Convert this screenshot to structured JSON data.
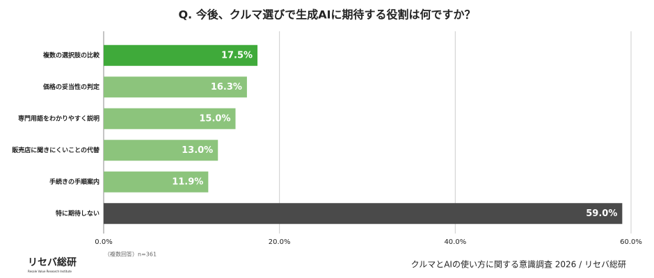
{
  "chart_data": {
    "type": "barh",
    "title": "Q. 今後、クルマ選びで生成AIに期待する役割は何ですか？",
    "categories": [
      "複数の選択肢の比較",
      "価格の妥当性の判定",
      "専門用語をわかりやすく説明",
      "販売店に聞きにくいことの代替",
      "手続きの手順案内",
      "特に期待しない"
    ],
    "values": [
      17.5,
      16.3,
      15.0,
      13.0,
      11.9,
      59.0
    ],
    "value_labels": [
      "17.5%",
      "16.3%",
      "15.0%",
      "13.0%",
      "11.9%",
      "59.0%"
    ],
    "colors": [
      "#3faa3a",
      "#8cc47c",
      "#8cc47c",
      "#8cc47c",
      "#8cc47c",
      "#4a4a4a"
    ],
    "xlim": [
      0,
      60
    ],
    "xticks": [
      {
        "value": 0,
        "label": "0.0%"
      },
      {
        "value": 20,
        "label": "20.0%"
      },
      {
        "value": 40,
        "label": "40.0%"
      },
      {
        "value": 60,
        "label": "60.0%"
      }
    ],
    "grid": true,
    "note": "（複数回答）n=361",
    "source": "クルマとAIの使い方に関する意識調査 2026 / リセバ総研",
    "logo": "リセバ総研",
    "logo_sub": "Resale Value Research Institute"
  }
}
